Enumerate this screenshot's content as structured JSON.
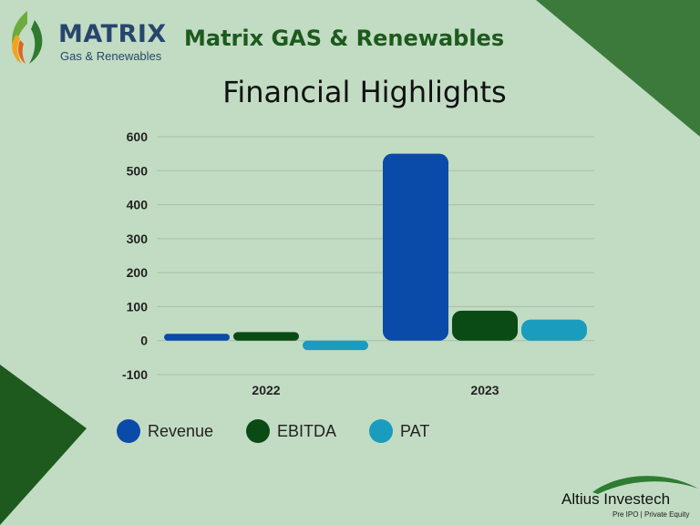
{
  "header": {
    "logo_name": "MATRIX",
    "logo_sub": "Gas & Renewables",
    "company_title": "Matrix GAS & Renewables"
  },
  "colors": {
    "background": "#c2dcc3",
    "corner": "#3c7a3c",
    "corner_dark": "#1e5a1e",
    "title_green": "#1d5a1d",
    "logo_text": "#27466d"
  },
  "icons": {
    "logo": "flame-leaf-icon",
    "brand": "swoosh-icon"
  },
  "chart_data": {
    "type": "bar",
    "title": "Financial Highlights",
    "xlabel": "",
    "ylabel": "",
    "categories": [
      "2022",
      "2023"
    ],
    "series": [
      {
        "name": "Revenue",
        "values": [
          20,
          550
        ],
        "color": "#0a4aa8"
      },
      {
        "name": "EBITDA",
        "values": [
          25,
          88
        ],
        "color": "#0a4a14"
      },
      {
        "name": "PAT",
        "values": [
          -28,
          62
        ],
        "color": "#1a9cbf"
      }
    ],
    "ylim": [
      -100,
      600
    ],
    "yticks": [
      "600",
      "500",
      "400",
      "300",
      "200",
      "100",
      "0",
      "-100"
    ],
    "grid": true,
    "legend": "bottom"
  },
  "footer": {
    "brand_name": "Altius Investech",
    "brand_tag": "Pre IPO | Private Equity"
  }
}
